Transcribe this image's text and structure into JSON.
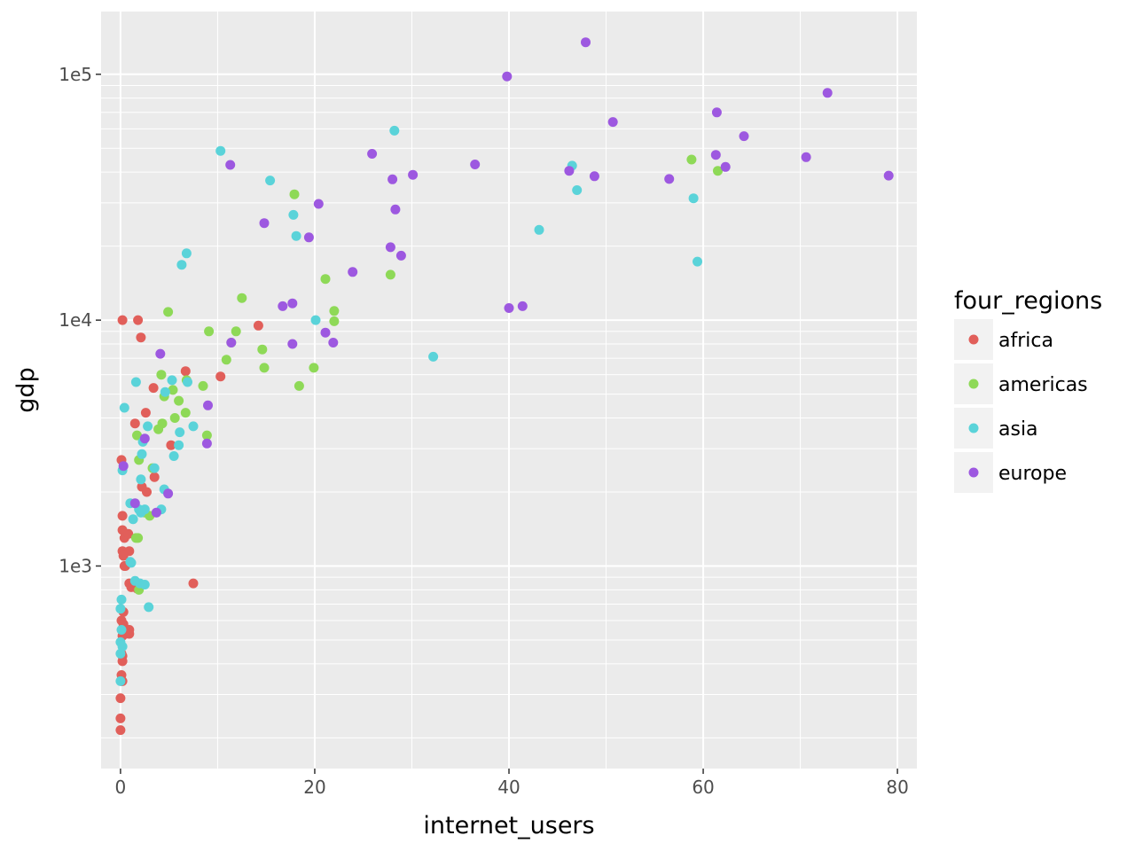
{
  "chart_data": {
    "type": "scatter",
    "xlabel": "internet_users",
    "ylabel": "gdp",
    "xlim": [
      -2,
      82
    ],
    "ylim": [
      150,
      180000
    ],
    "y_scale": "log",
    "x_ticks": [
      0,
      20,
      40,
      60,
      80
    ],
    "x_tick_labels": [
      "0",
      "20",
      "40",
      "60",
      "80"
    ],
    "y_ticks": [
      1000,
      10000,
      100000
    ],
    "y_tick_labels": [
      "1e3",
      "1e4",
      "1e5"
    ],
    "grid": true,
    "legend": {
      "title": "four_regions",
      "position": "right"
    },
    "colors": {
      "africa": "#e15f5a",
      "americas": "#8ed957",
      "asia": "#5ad3d9",
      "europe": "#9d58e0"
    },
    "series": [
      {
        "name": "africa",
        "points": [
          [
            0.2,
            10000
          ],
          [
            1.8,
            10000
          ],
          [
            2.1,
            8500
          ],
          [
            14.2,
            9500
          ],
          [
            6.7,
            6200
          ],
          [
            10.3,
            5900
          ],
          [
            2.6,
            4200
          ],
          [
            1.5,
            3800
          ],
          [
            3.4,
            5300
          ],
          [
            5.2,
            3100
          ],
          [
            0.1,
            2700
          ],
          [
            3.5,
            2300
          ],
          [
            2.2,
            2100
          ],
          [
            2.7,
            2000
          ],
          [
            0.2,
            1600
          ],
          [
            0.2,
            1400
          ],
          [
            0.4,
            1300
          ],
          [
            0.8,
            1350
          ],
          [
            0.2,
            1150
          ],
          [
            0.9,
            1150
          ],
          [
            0.3,
            1100
          ],
          [
            0.4,
            1000
          ],
          [
            0.5,
            1000
          ],
          [
            0.9,
            850
          ],
          [
            1.1,
            820
          ],
          [
            1.7,
            810
          ],
          [
            7.5,
            850
          ],
          [
            0.3,
            650
          ],
          [
            0.1,
            600
          ],
          [
            0.3,
            580
          ],
          [
            0.4,
            560
          ],
          [
            0.9,
            550
          ],
          [
            0.9,
            530
          ],
          [
            0.5,
            530
          ],
          [
            0.2,
            520
          ],
          [
            0.1,
            440
          ],
          [
            0.2,
            430
          ],
          [
            0.2,
            410
          ],
          [
            0.1,
            360
          ],
          [
            0.1,
            340
          ],
          [
            0.2,
            340
          ],
          [
            0.0,
            290
          ],
          [
            0.0,
            240
          ],
          [
            0.0,
            215
          ]
        ]
      },
      {
        "name": "americas",
        "points": [
          [
            58.8,
            45000
          ],
          [
            61.5,
            40500
          ],
          [
            17.9,
            32500
          ],
          [
            21.1,
            14700
          ],
          [
            27.8,
            15300
          ],
          [
            12.5,
            12300
          ],
          [
            4.9,
            10800
          ],
          [
            22.0,
            10900
          ],
          [
            22.0,
            9900
          ],
          [
            9.1,
            9000
          ],
          [
            11.9,
            9000
          ],
          [
            11.4,
            8100
          ],
          [
            14.6,
            7600
          ],
          [
            10.9,
            6900
          ],
          [
            14.8,
            6400
          ],
          [
            19.9,
            6400
          ],
          [
            4.2,
            6000
          ],
          [
            6.8,
            5700
          ],
          [
            8.5,
            5400
          ],
          [
            18.4,
            5400
          ],
          [
            5.4,
            5200
          ],
          [
            4.5,
            4900
          ],
          [
            6.0,
            4700
          ],
          [
            6.7,
            4200
          ],
          [
            5.6,
            4000
          ],
          [
            4.3,
            3800
          ],
          [
            3.9,
            3600
          ],
          [
            1.7,
            3400
          ],
          [
            8.9,
            3400
          ],
          [
            1.9,
            2700
          ],
          [
            3.3,
            2500
          ],
          [
            2.5,
            1650
          ],
          [
            3.0,
            1600
          ],
          [
            1.6,
            1300
          ],
          [
            1.8,
            1300
          ],
          [
            1.9,
            800
          ]
        ]
      },
      {
        "name": "asia",
        "points": [
          [
            28.2,
            59000
          ],
          [
            10.3,
            48800
          ],
          [
            46.5,
            42500
          ],
          [
            15.4,
            37000
          ],
          [
            47.0,
            33800
          ],
          [
            59.0,
            31300
          ],
          [
            17.8,
            26800
          ],
          [
            43.1,
            23300
          ],
          [
            18.1,
            22000
          ],
          [
            6.8,
            18700
          ],
          [
            6.3,
            16800
          ],
          [
            59.4,
            17300
          ],
          [
            20.1,
            10000
          ],
          [
            32.2,
            7100
          ],
          [
            1.6,
            5600
          ],
          [
            5.3,
            5700
          ],
          [
            6.9,
            5600
          ],
          [
            4.6,
            5100
          ],
          [
            0.4,
            4400
          ],
          [
            2.8,
            3700
          ],
          [
            7.5,
            3700
          ],
          [
            6.1,
            3500
          ],
          [
            2.3,
            3200
          ],
          [
            6.0,
            3100
          ],
          [
            2.2,
            2850
          ],
          [
            5.5,
            2800
          ],
          [
            3.5,
            2500
          ],
          [
            0.2,
            2450
          ],
          [
            2.1,
            2250
          ],
          [
            4.5,
            2050
          ],
          [
            1.0,
            1800
          ],
          [
            1.9,
            1700
          ],
          [
            2.5,
            1700
          ],
          [
            4.2,
            1700
          ],
          [
            2.1,
            1650
          ],
          [
            1.3,
            1550
          ],
          [
            1.1,
            1030
          ],
          [
            1.0,
            1040
          ],
          [
            1.5,
            870
          ],
          [
            2.0,
            850
          ],
          [
            2.5,
            840
          ],
          [
            0.1,
            730
          ],
          [
            2.9,
            680
          ],
          [
            0.0,
            670
          ],
          [
            0.1,
            550
          ],
          [
            0.0,
            490
          ],
          [
            0.2,
            470
          ],
          [
            0.0,
            440
          ],
          [
            0.0,
            340
          ]
        ]
      },
      {
        "name": "europe",
        "points": [
          [
            47.9,
            135000
          ],
          [
            39.8,
            98000
          ],
          [
            72.8,
            84000
          ],
          [
            61.4,
            70000
          ],
          [
            50.7,
            64000
          ],
          [
            64.2,
            56000
          ],
          [
            25.9,
            47500
          ],
          [
            61.3,
            47000
          ],
          [
            70.6,
            46000
          ],
          [
            11.3,
            42800
          ],
          [
            36.5,
            43000
          ],
          [
            62.3,
            42000
          ],
          [
            46.2,
            40500
          ],
          [
            30.1,
            39000
          ],
          [
            48.8,
            38500
          ],
          [
            79.1,
            38700
          ],
          [
            28.0,
            37400
          ],
          [
            56.5,
            37500
          ],
          [
            20.4,
            29700
          ],
          [
            28.3,
            28200
          ],
          [
            14.8,
            24800
          ],
          [
            19.4,
            21700
          ],
          [
            27.8,
            19800
          ],
          [
            28.9,
            18300
          ],
          [
            23.9,
            15700
          ],
          [
            16.7,
            11400
          ],
          [
            17.7,
            11700
          ],
          [
            40.0,
            11200
          ],
          [
            41.4,
            11400
          ],
          [
            21.1,
            8900
          ],
          [
            17.7,
            8000
          ],
          [
            21.9,
            8100
          ],
          [
            11.4,
            8100
          ],
          [
            4.1,
            7300
          ],
          [
            9.0,
            4500
          ],
          [
            2.5,
            3300
          ],
          [
            8.9,
            3150
          ],
          [
            0.3,
            2550
          ],
          [
            4.9,
            1970
          ],
          [
            1.5,
            1800
          ],
          [
            3.7,
            1650
          ]
        ]
      }
    ]
  }
}
